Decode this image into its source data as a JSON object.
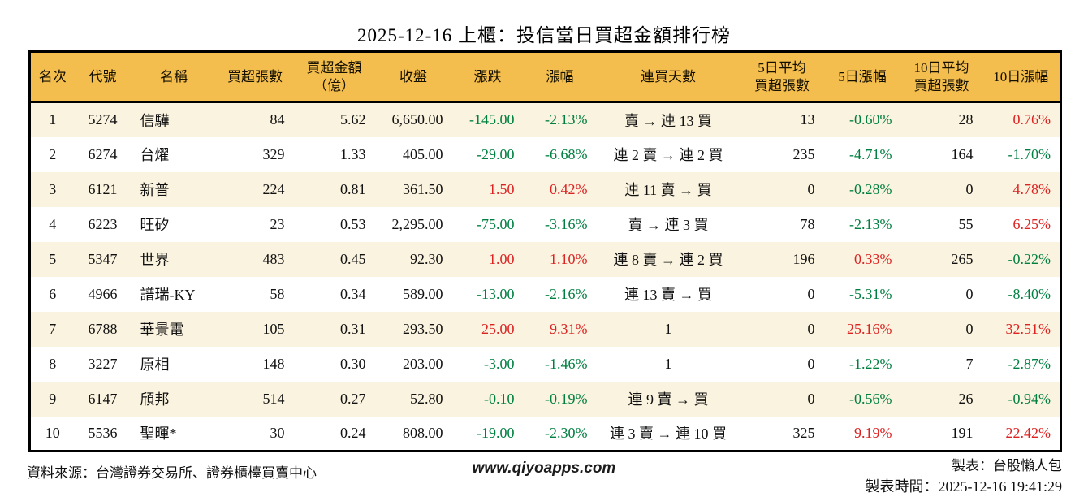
{
  "title": "2025-12-16 上櫃：投信當日買超金額排行榜",
  "colors": {
    "header_bg": "#F3BE4E",
    "row_odd_bg": "#FAF3DF",
    "row_even_bg": "#FFFFFF",
    "up_red": "#DD2222",
    "down_green": "#008040",
    "border_black": "#000000"
  },
  "table": {
    "headers": [
      "名次",
      "代號",
      "名稱",
      "買超張數",
      "買超金額\n（億）",
      "收盤",
      "漲跌",
      "漲幅",
      "連買天數",
      "5日平均\n買超張數",
      "5日漲幅",
      "10日平均\n買超張數",
      "10日漲幅"
    ],
    "rows": [
      {
        "rank": "1",
        "code": "5274",
        "name": "信驊",
        "shares": "84",
        "amount": "5.62",
        "close": "6,650.00",
        "change": {
          "v": "-145.00",
          "t": "down"
        },
        "change_pct": {
          "v": "-2.13%",
          "t": "down"
        },
        "streak": "賣 → 連 13 買",
        "avg5": "13",
        "pct5": {
          "v": "-0.60%",
          "t": "down"
        },
        "avg10": "28",
        "pct10": {
          "v": "0.76%",
          "t": "up"
        }
      },
      {
        "rank": "2",
        "code": "6274",
        "name": "台燿",
        "shares": "329",
        "amount": "1.33",
        "close": "405.00",
        "change": {
          "v": "-29.00",
          "t": "down"
        },
        "change_pct": {
          "v": "-6.68%",
          "t": "down"
        },
        "streak": "連 2 賣 → 連 2 買",
        "avg5": "235",
        "pct5": {
          "v": "-4.71%",
          "t": "down"
        },
        "avg10": "164",
        "pct10": {
          "v": "-1.70%",
          "t": "down"
        }
      },
      {
        "rank": "3",
        "code": "6121",
        "name": "新普",
        "shares": "224",
        "amount": "0.81",
        "close": "361.50",
        "change": {
          "v": "1.50",
          "t": "up"
        },
        "change_pct": {
          "v": "0.42%",
          "t": "up"
        },
        "streak": "連 11 賣 → 買",
        "avg5": "0",
        "pct5": {
          "v": "-0.28%",
          "t": "down"
        },
        "avg10": "0",
        "pct10": {
          "v": "4.78%",
          "t": "up"
        }
      },
      {
        "rank": "4",
        "code": "6223",
        "name": "旺矽",
        "shares": "23",
        "amount": "0.53",
        "close": "2,295.00",
        "change": {
          "v": "-75.00",
          "t": "down"
        },
        "change_pct": {
          "v": "-3.16%",
          "t": "down"
        },
        "streak": "賣 → 連 3 買",
        "avg5": "78",
        "pct5": {
          "v": "-2.13%",
          "t": "down"
        },
        "avg10": "55",
        "pct10": {
          "v": "6.25%",
          "t": "up"
        }
      },
      {
        "rank": "5",
        "code": "5347",
        "name": "世界",
        "shares": "483",
        "amount": "0.45",
        "close": "92.30",
        "change": {
          "v": "1.00",
          "t": "up"
        },
        "change_pct": {
          "v": "1.10%",
          "t": "up"
        },
        "streak": "連 8 賣 → 連 2 買",
        "avg5": "196",
        "pct5": {
          "v": "0.33%",
          "t": "up"
        },
        "avg10": "265",
        "pct10": {
          "v": "-0.22%",
          "t": "down"
        }
      },
      {
        "rank": "6",
        "code": "4966",
        "name": "譜瑞-KY",
        "shares": "58",
        "amount": "0.34",
        "close": "589.00",
        "change": {
          "v": "-13.00",
          "t": "down"
        },
        "change_pct": {
          "v": "-2.16%",
          "t": "down"
        },
        "streak": "連 13 賣 → 買",
        "avg5": "0",
        "pct5": {
          "v": "-5.31%",
          "t": "down"
        },
        "avg10": "0",
        "pct10": {
          "v": "-8.40%",
          "t": "down"
        }
      },
      {
        "rank": "7",
        "code": "6788",
        "name": "華景電",
        "shares": "105",
        "amount": "0.31",
        "close": "293.50",
        "change": {
          "v": "25.00",
          "t": "up"
        },
        "change_pct": {
          "v": "9.31%",
          "t": "up"
        },
        "streak": "1",
        "avg5": "0",
        "pct5": {
          "v": "25.16%",
          "t": "up"
        },
        "avg10": "0",
        "pct10": {
          "v": "32.51%",
          "t": "up"
        }
      },
      {
        "rank": "8",
        "code": "3227",
        "name": "原相",
        "shares": "148",
        "amount": "0.30",
        "close": "203.00",
        "change": {
          "v": "-3.00",
          "t": "down"
        },
        "change_pct": {
          "v": "-1.46%",
          "t": "down"
        },
        "streak": "1",
        "avg5": "0",
        "pct5": {
          "v": "-1.22%",
          "t": "down"
        },
        "avg10": "7",
        "pct10": {
          "v": "-2.87%",
          "t": "down"
        }
      },
      {
        "rank": "9",
        "code": "6147",
        "name": "頎邦",
        "shares": "514",
        "amount": "0.27",
        "close": "52.80",
        "change": {
          "v": "-0.10",
          "t": "down"
        },
        "change_pct": {
          "v": "-0.19%",
          "t": "down"
        },
        "streak": "連 9 賣 → 買",
        "avg5": "0",
        "pct5": {
          "v": "-0.56%",
          "t": "down"
        },
        "avg10": "26",
        "pct10": {
          "v": "-0.94%",
          "t": "down"
        }
      },
      {
        "rank": "10",
        "code": "5536",
        "name": "聖暉*",
        "shares": "30",
        "amount": "0.24",
        "close": "808.00",
        "change": {
          "v": "-19.00",
          "t": "down"
        },
        "change_pct": {
          "v": "-2.30%",
          "t": "down"
        },
        "streak": "連 3 賣 → 連 10 買",
        "avg5": "325",
        "pct5": {
          "v": "9.19%",
          "t": "up"
        },
        "avg10": "191",
        "pct10": {
          "v": "22.42%",
          "t": "up"
        }
      }
    ]
  },
  "footer": {
    "source": "資料來源：台灣證券交易所、證券櫃檯買賣中心",
    "website": "www.qiyoapps.com",
    "credit": "製表：台股懶人包",
    "generated": "製表時間：2025-12-16 19:41:29"
  }
}
